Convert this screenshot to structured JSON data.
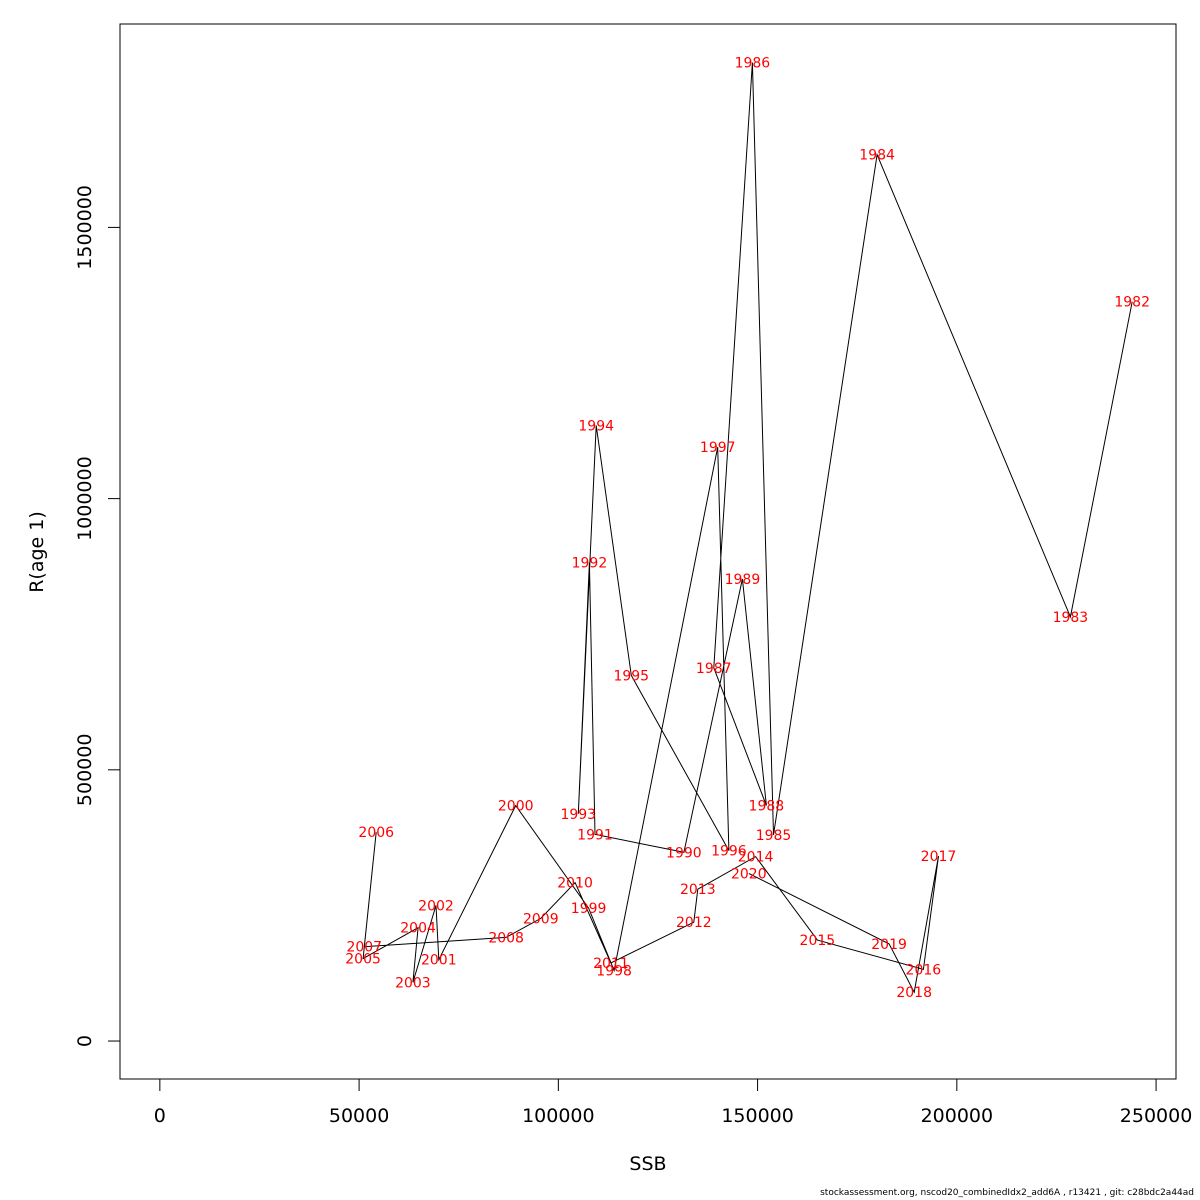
{
  "chart_data": {
    "type": "line",
    "xlabel": "SSB",
    "ylabel": "R(age 1)",
    "xlim": [
      -10000,
      255000
    ],
    "ylim": [
      -70000,
      1875000
    ],
    "x_ticks": [
      0,
      50000,
      100000,
      150000,
      200000,
      250000
    ],
    "y_ticks": [
      0,
      500000,
      1000000,
      1500000
    ],
    "grid": false,
    "line_color": "#000000",
    "label_color": "#ff0000",
    "points": [
      {
        "year": "1982",
        "ssb": 244000,
        "r": 1363000
      },
      {
        "year": "1983",
        "ssb": 228500,
        "r": 782000
      },
      {
        "year": "1984",
        "ssb": 180000,
        "r": 1634000
      },
      {
        "year": "1985",
        "ssb": 154000,
        "r": 380000
      },
      {
        "year": "1986",
        "ssb": 148700,
        "r": 1804000
      },
      {
        "year": "1987",
        "ssb": 139000,
        "r": 688000
      },
      {
        "year": "1988",
        "ssb": 152200,
        "r": 434000
      },
      {
        "year": "1989",
        "ssb": 146200,
        "r": 852000
      },
      {
        "year": "1990",
        "ssb": 131500,
        "r": 348000
      },
      {
        "year": "1991",
        "ssb": 109200,
        "r": 381000
      },
      {
        "year": "1992",
        "ssb": 107800,
        "r": 882000
      },
      {
        "year": "1993",
        "ssb": 105000,
        "r": 419000
      },
      {
        "year": "1994",
        "ssb": 109500,
        "r": 1135000
      },
      {
        "year": "1995",
        "ssb": 118300,
        "r": 674000
      },
      {
        "year": "1996",
        "ssb": 142800,
        "r": 351000
      },
      {
        "year": "1997",
        "ssb": 140000,
        "r": 1095000
      },
      {
        "year": "1998",
        "ssb": 114000,
        "r": 130000
      },
      {
        "year": "1999",
        "ssb": 107600,
        "r": 245000
      },
      {
        "year": "2000",
        "ssb": 89300,
        "r": 434000
      },
      {
        "year": "2001",
        "ssb": 70000,
        "r": 150000
      },
      {
        "year": "2002",
        "ssb": 69300,
        "r": 250000
      },
      {
        "year": "2003",
        "ssb": 63500,
        "r": 108000
      },
      {
        "year": "2004",
        "ssb": 64800,
        "r": 209000
      },
      {
        "year": "2005",
        "ssb": 51000,
        "r": 152000
      },
      {
        "year": "2006",
        "ssb": 54300,
        "r": 385000
      },
      {
        "year": "2007",
        "ssb": 51300,
        "r": 174000
      },
      {
        "year": "2008",
        "ssb": 86900,
        "r": 191000
      },
      {
        "year": "2009",
        "ssb": 95600,
        "r": 226000
      },
      {
        "year": "2010",
        "ssb": 104200,
        "r": 292000
      },
      {
        "year": "2011",
        "ssb": 113200,
        "r": 144000
      },
      {
        "year": "2012",
        "ssb": 134000,
        "r": 219000
      },
      {
        "year": "2013",
        "ssb": 135000,
        "r": 280000
      },
      {
        "year": "2014",
        "ssb": 149500,
        "r": 340000
      },
      {
        "year": "2015",
        "ssb": 165000,
        "r": 186000
      },
      {
        "year": "2016",
        "ssb": 191600,
        "r": 132000
      },
      {
        "year": "2017",
        "ssb": 195400,
        "r": 341000
      },
      {
        "year": "2018",
        "ssb": 189300,
        "r": 90000
      },
      {
        "year": "2019",
        "ssb": 183000,
        "r": 179000
      },
      {
        "year": "2020",
        "ssb": 147800,
        "r": 309000
      }
    ]
  },
  "footer": "stockassessment.org, nscod20_combinedIdx2_add6A , r13421 , git: c28bdc2a44ad"
}
